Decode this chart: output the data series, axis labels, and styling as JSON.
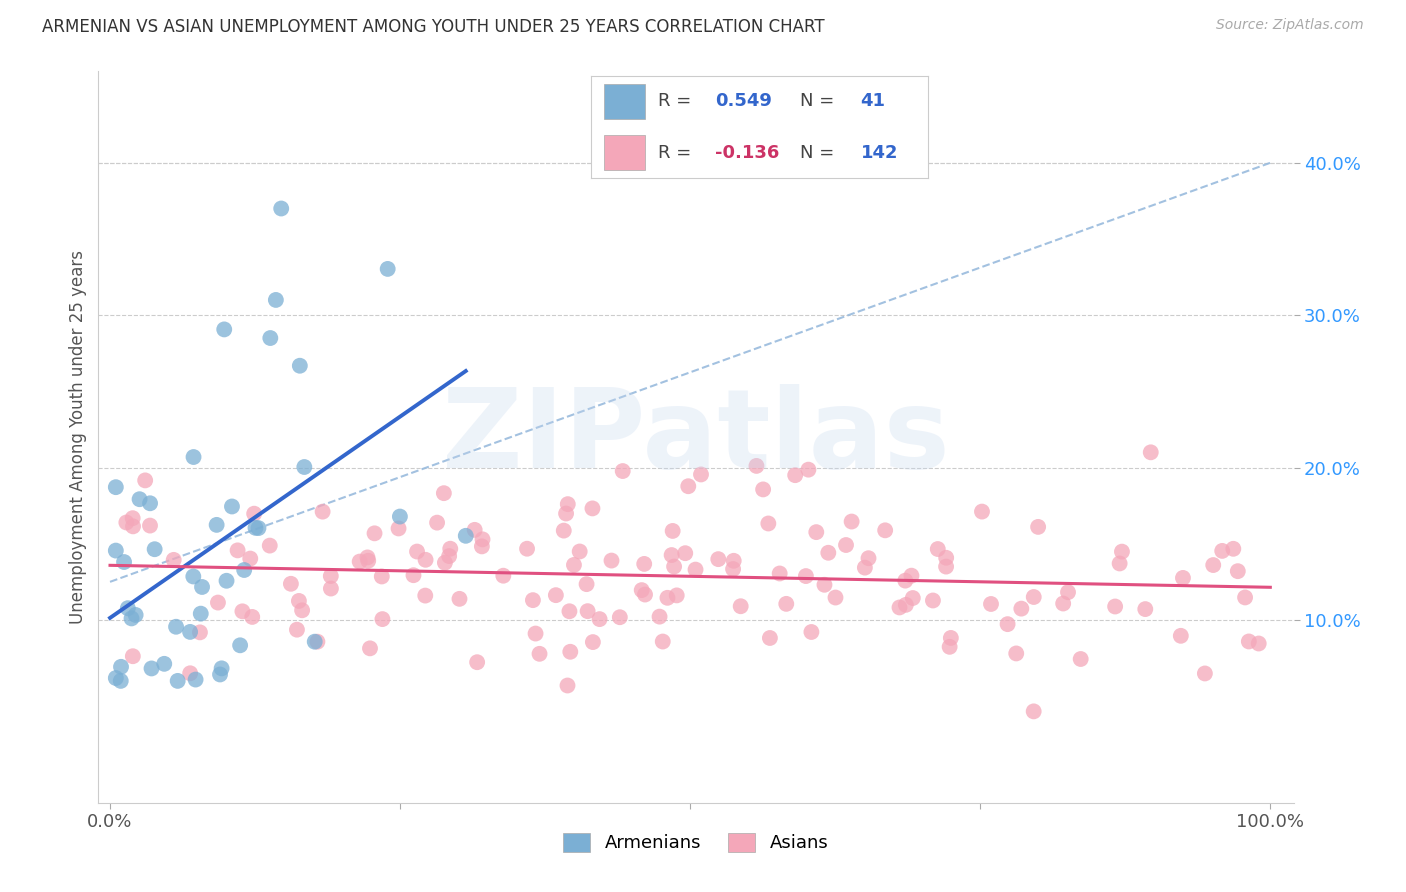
{
  "title": "ARMENIAN VS ASIAN UNEMPLOYMENT AMONG YOUTH UNDER 25 YEARS CORRELATION CHART",
  "source": "Source: ZipAtlas.com",
  "ylabel": "Unemployment Among Youth under 25 years",
  "ytick_values": [
    0.1,
    0.2,
    0.3,
    0.4
  ],
  "ytick_labels": [
    "10.0%",
    "20.0%",
    "30.0%",
    "40.0%"
  ],
  "xtick_values": [
    0.0,
    0.25,
    0.5,
    0.75,
    1.0
  ],
  "xtick_labels": [
    "0.0%",
    "",
    "",
    "",
    "100.0%"
  ],
  "xlim": [
    -0.01,
    1.02
  ],
  "ylim": [
    -0.02,
    0.46
  ],
  "armenian_color": "#7bafd4",
  "asian_color": "#f4a7b9",
  "armenian_line_color": "#3366cc",
  "asian_line_color": "#e05080",
  "dashed_line_color": "#99bbdd",
  "R_armenian": 0.549,
  "N_armenian": 41,
  "R_asian": -0.136,
  "N_asian": 142,
  "watermark_text": "ZIPatlas",
  "background_color": "#ffffff",
  "grid_color": "#cccccc",
  "title_color": "#333333",
  "source_color": "#aaaaaa",
  "legend_label_armenian": "Armenians",
  "legend_label_asian": "Asians",
  "legend_R_color": "#3366cc",
  "legend_R_neg_color": "#cc3366",
  "ytick_color": "#3399ff",
  "arm_seed": 10,
  "asian_seed": 20,
  "dot_size": 130,
  "dot_alpha": 0.75
}
